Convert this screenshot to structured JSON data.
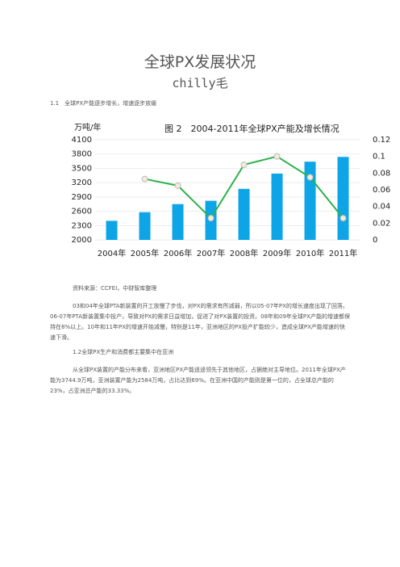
{
  "title": "全球PX发展状况",
  "author": "chilly毛",
  "heading1": "1.1　全球PX产能逐步增长，增速逐步放缓",
  "chart_data": {
    "type": "bar",
    "title": "图 2　2004-2011年全球PX产能及增长情况",
    "ylabel": "万吨/年",
    "categories": [
      "2004年",
      "2005年",
      "2006年",
      "2007年",
      "2008年",
      "2009年",
      "2010年",
      "2011年"
    ],
    "series": [
      {
        "type": "bar",
        "color": "#0ea5e6",
        "values": [
          2400,
          2580,
          2750,
          2820,
          3070,
          3390,
          3640,
          3740
        ]
      },
      {
        "type": "line",
        "axis": "y2",
        "color": "#2ab34b",
        "values": [
          null,
          0.073,
          0.065,
          0.026,
          0.09,
          0.1,
          0.075,
          0.026
        ]
      }
    ],
    "ylim": [
      2000,
      4100
    ],
    "yticks": [
      2000,
      2300,
      2600,
      2900,
      3200,
      3500,
      3800,
      4100
    ],
    "y2lim": [
      0,
      0.12
    ],
    "y2ticks": [
      0,
      0.02,
      0.04,
      0.06,
      0.08,
      0.1,
      0.12
    ],
    "grid": true
  },
  "source": "资料来源：CCFEI，中财智库整理",
  "paragraph1": "03和04年全球PTA新装置的开工放慢了步伐，对PX的需求有所减弱，所以05-07年PX的增长速度出现了回落。06-07年PTA新装置集中投产，导致对PX的需求日益增加，促进了对PX装置的投资。08年和09年全球PX产能的增速都保持在8%以上。10年和11年PX的增速开始减慢，特别是11年，亚洲地区的PX投产扩能较少，造成全球PX产能增速的快速下滑。",
  "heading2": "1.2全球PX生产和消费都主要集中在亚洲",
  "paragraph2": "从全球PX装置的产能分布来看，亚洲地区PX产能遥遥领先于其他地区，占据绝对主导地位。2011年全球PX产能为3744.9万吨，亚洲装置产能为2584万吨，占比达到69%。在亚洲中国的产能则是第一位的，占全球总产能的23%，占亚洲总产能的33.33%。"
}
